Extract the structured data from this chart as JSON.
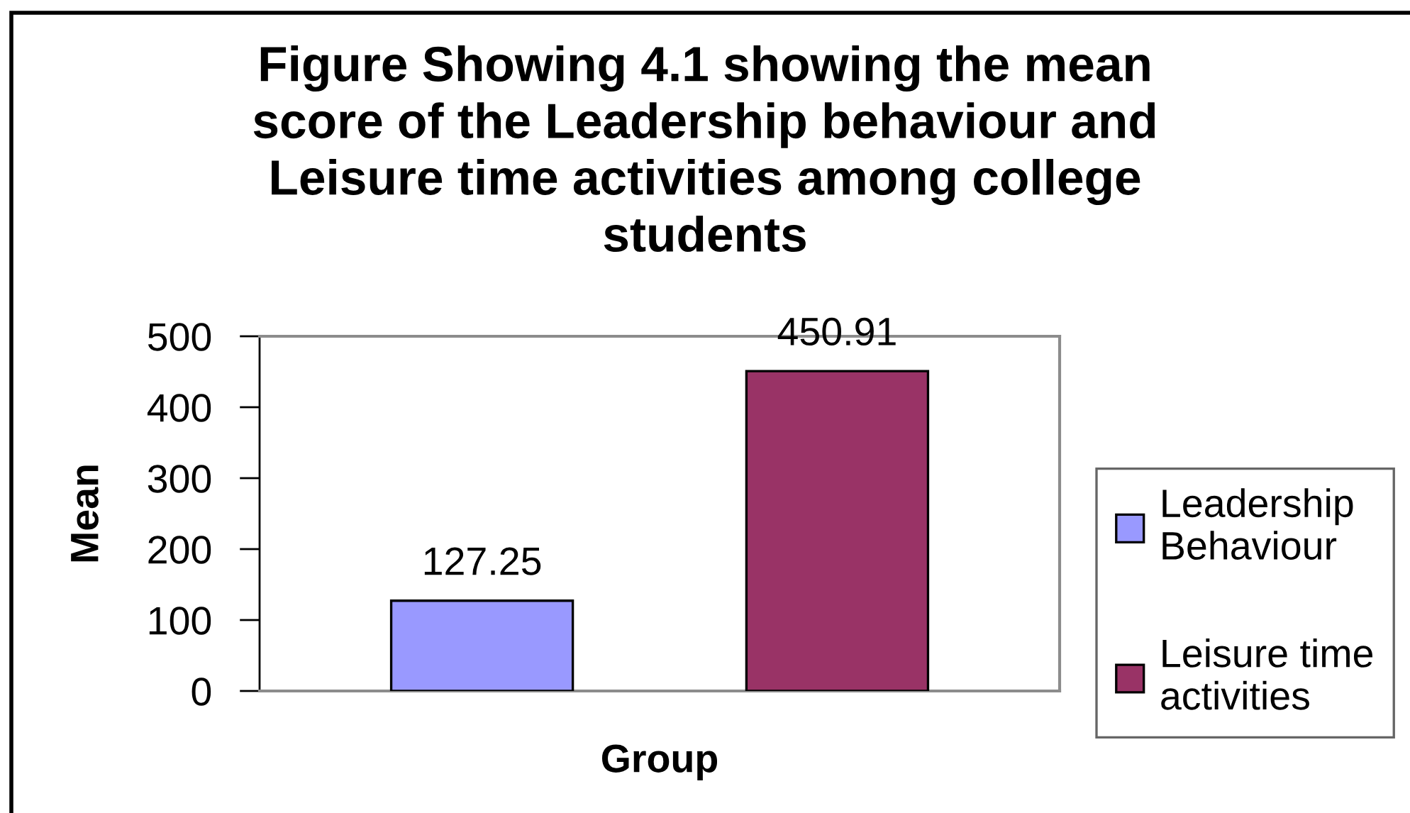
{
  "chart_data": {
    "type": "bar",
    "title": "Figure Showing 4.1 showing the mean score of the Leadership behaviour and Leisure time activities among college students",
    "xlabel": "Group",
    "ylabel": "Mean",
    "categories": [
      null
    ],
    "series": [
      {
        "name": "Leadership Behaviour",
        "color": "#9999ff",
        "values": [
          127.25
        ]
      },
      {
        "name": "Leisure time activities",
        "color": "#993366",
        "values": [
          450.91
        ]
      }
    ],
    "ylim": [
      0,
      500
    ],
    "yticks": [
      0,
      100,
      200,
      300,
      400,
      500
    ],
    "legend": "right",
    "data_labels": true
  }
}
